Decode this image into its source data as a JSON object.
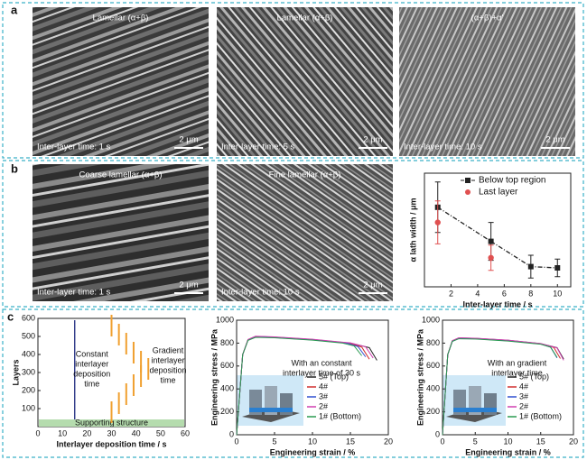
{
  "panels": {
    "a": "a",
    "b": "b",
    "c": "c"
  },
  "micrographs": [
    {
      "caption": "Lamellar (α+β)",
      "note": "Inter-layer time: 1 s",
      "scale": "2 μm"
    },
    {
      "caption": "Lamellar (α+β)",
      "note": "Inter-layer time: 5 s",
      "scale": "2 μm"
    },
    {
      "caption": "(α+β)+α'",
      "note": "Inter-layer time: 10 s",
      "scale": "2 μm"
    },
    {
      "caption": "Coarse lamellar (α+β)",
      "note": "Inter-layer time: 1 s",
      "scale": "2 μm"
    },
    {
      "caption": "Fine lamellar (α+β)",
      "note": "Inter-layer time: 10 s",
      "scale": "2 μm"
    }
  ],
  "chart_data": [
    {
      "type": "errorline",
      "xlabel": "Inter-layer time / s",
      "ylabel": "α lath width / μm",
      "xlim": [
        0,
        11
      ],
      "xticks": [
        2,
        4,
        6,
        8,
        10
      ],
      "ylim": [
        0.1,
        1.0
      ],
      "legend": "upper right",
      "series": [
        {
          "name": "Below top region",
          "color": "#222222",
          "linestyle": "dash-dot",
          "marker": "square",
          "x": [
            1,
            5,
            8,
            10
          ],
          "values": [
            0.73,
            0.46,
            0.26,
            0.25
          ],
          "errors": [
            0.2,
            0.15,
            0.09,
            0.07
          ]
        },
        {
          "name": "Last layer",
          "color": "#e05050",
          "linestyle": "none",
          "marker": "circle",
          "x": [
            1,
            5
          ],
          "values": [
            0.61,
            0.33
          ],
          "errors": [
            0.17,
            0.1
          ]
        }
      ]
    },
    {
      "type": "schedule",
      "xlabel": "Interlayer deposition time / s",
      "ylabel": "Layers",
      "xlim": [
        0,
        60
      ],
      "xticks": [
        0,
        10,
        20,
        30,
        40,
        50,
        60
      ],
      "ylim": [
        0,
        600
      ],
      "yticks": [
        100,
        200,
        300,
        400,
        500,
        600
      ],
      "band": {
        "label": "Supporting structure",
        "range": [
          0,
          40
        ],
        "color": "#b5dcae"
      },
      "annotations": [
        [
          "Constant",
          "interlayer",
          "deposition",
          "time"
        ],
        [
          "Gradient",
          "interlayer",
          "deposition",
          "time"
        ]
      ],
      "series": [
        {
          "color": "#1f2a80",
          "linestyle": "solid",
          "x": [
            15,
            15
          ],
          "values": [
            40,
            590
          ]
        },
        {
          "color": "#f0a030",
          "linestyle": "dashes",
          "x": [
            30,
            33,
            36,
            39,
            42,
            45,
            42,
            39,
            36,
            33,
            30
          ],
          "values": [
            560,
            510,
            460,
            410,
            360,
            320,
            280,
            230,
            180,
            130,
            80
          ]
        }
      ]
    },
    {
      "type": "line",
      "xlabel": "Engineering strain / %",
      "ylabel": "Engineering stress / MPa",
      "xlim": [
        0,
        20
      ],
      "xticks": [
        0,
        5,
        10,
        15,
        20
      ],
      "ylim": [
        0,
        1000
      ],
      "yticks": [
        0,
        200,
        400,
        600,
        800,
        1000
      ],
      "annotation": [
        "With an constant",
        "interlayer time of 30 s"
      ],
      "series": [
        {
          "name": "5# (Top)",
          "color": "#222222",
          "x": [
            0,
            0.8,
            1.5,
            2.5,
            5,
            10,
            15,
            17.5,
            18.5
          ],
          "values": [
            0,
            700,
            830,
            858,
            852,
            832,
            800,
            760,
            650
          ]
        },
        {
          "name": "4#",
          "color": "#d03030",
          "x": [
            0,
            0.8,
            1.5,
            2.5,
            5,
            10,
            15,
            16.5,
            17.5
          ],
          "values": [
            0,
            700,
            828,
            855,
            850,
            830,
            798,
            765,
            660
          ]
        },
        {
          "name": "3#",
          "color": "#3050d0",
          "x": [
            0,
            0.8,
            1.5,
            2.5,
            5,
            10,
            14.5,
            16,
            17
          ],
          "values": [
            0,
            700,
            826,
            852,
            848,
            828,
            800,
            770,
            680
          ]
        },
        {
          "name": "2#",
          "color": "#d040b0",
          "x": [
            0,
            0.8,
            1.5,
            2.5,
            5,
            10,
            15,
            17,
            18
          ],
          "values": [
            0,
            700,
            832,
            860,
            854,
            834,
            802,
            768,
            670
          ]
        },
        {
          "name": "1# (Bottom)",
          "color": "#2a9a50",
          "x": [
            0,
            0.8,
            1.5,
            2.5,
            5,
            10,
            14,
            15.5,
            16.5
          ],
          "values": [
            0,
            700,
            824,
            850,
            846,
            826,
            800,
            775,
            690
          ]
        }
      ]
    },
    {
      "type": "line",
      "xlabel": "Engineering strain / %",
      "ylabel": "Engineering stress / MPa",
      "xlim": [
        0,
        20
      ],
      "xticks": [
        0,
        5,
        10,
        15,
        20
      ],
      "ylim": [
        0,
        1000
      ],
      "yticks": [
        0,
        200,
        400,
        600,
        800,
        1000
      ],
      "annotation": [
        "With an gradient",
        "interlayer time"
      ],
      "series": [
        {
          "name": "5# (Top)",
          "color": "#222222",
          "x": [
            0,
            0.8,
            1.5,
            2.5,
            5,
            10,
            15,
            17.5,
            18.5
          ],
          "values": [
            0,
            700,
            820,
            845,
            842,
            825,
            795,
            760,
            660
          ]
        },
        {
          "name": "4#",
          "color": "#d03030",
          "x": [
            0,
            0.8,
            1.5,
            2.5,
            5,
            10,
            15,
            17,
            18
          ],
          "values": [
            0,
            700,
            818,
            842,
            840,
            822,
            794,
            762,
            665
          ]
        },
        {
          "name": "3#",
          "color": "#3050d0",
          "x": [
            0,
            0.8,
            1.5,
            2.5,
            5,
            10,
            15,
            16.5,
            17.5
          ],
          "values": [
            0,
            700,
            815,
            840,
            838,
            820,
            792,
            765,
            670
          ]
        },
        {
          "name": "2#",
          "color": "#d040b0",
          "x": [
            0,
            0.8,
            1.5,
            2.5,
            5,
            10,
            15,
            17.5,
            18.5
          ],
          "values": [
            0,
            700,
            822,
            846,
            843,
            826,
            796,
            758,
            650
          ]
        },
        {
          "name": "1# (Bottom)",
          "color": "#2a9a50",
          "x": [
            0,
            0.8,
            1.5,
            2.5,
            5,
            10,
            15,
            16.5,
            17.5
          ],
          "values": [
            0,
            700,
            816,
            838,
            836,
            818,
            790,
            765,
            675
          ]
        }
      ]
    }
  ]
}
